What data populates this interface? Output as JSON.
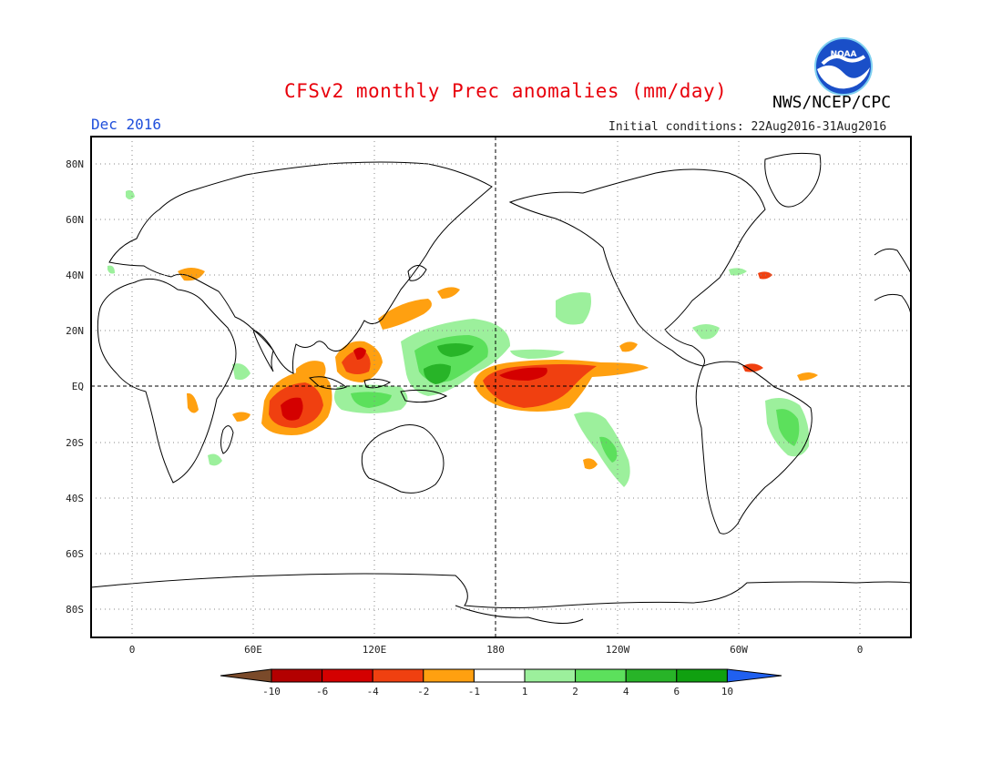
{
  "header": {
    "title": "CFSv2 monthly Prec anomalies (mm/day)",
    "agency": "NWS/NCEP/CPC",
    "logo_text": "NOAA",
    "month": "Dec 2016",
    "initial_conditions": "Initial conditions: 22Aug2016-31Aug2016"
  },
  "axes": {
    "lat_labels": [
      "80N",
      "60N",
      "40N",
      "20N",
      "EQ",
      "20S",
      "40S",
      "60S",
      "80S"
    ],
    "lon_labels": [
      "0",
      "60E",
      "120E",
      "180",
      "120W",
      "60W",
      "0"
    ]
  },
  "colorbar": {
    "labels": [
      "-10",
      "-6",
      "-4",
      "-2",
      "-1",
      "1",
      "2",
      "4",
      "6",
      "10"
    ],
    "colors": [
      "#7a4a2a",
      "#b30000",
      "#d40000",
      "#f04010",
      "#ffa010",
      "#ffffff",
      "#9cf09c",
      "#5ce05c",
      "#28b428",
      "#10a010",
      "#2060f0"
    ]
  },
  "colors": {
    "title": "#e8000b",
    "month": "#1f4fdb",
    "dry_strong": "#d40000",
    "dry": "#f04010",
    "dry_weak": "#ffa010",
    "wet_weak": "#9cf09c",
    "wet": "#5ce05c",
    "wet_strong": "#28b428"
  }
}
